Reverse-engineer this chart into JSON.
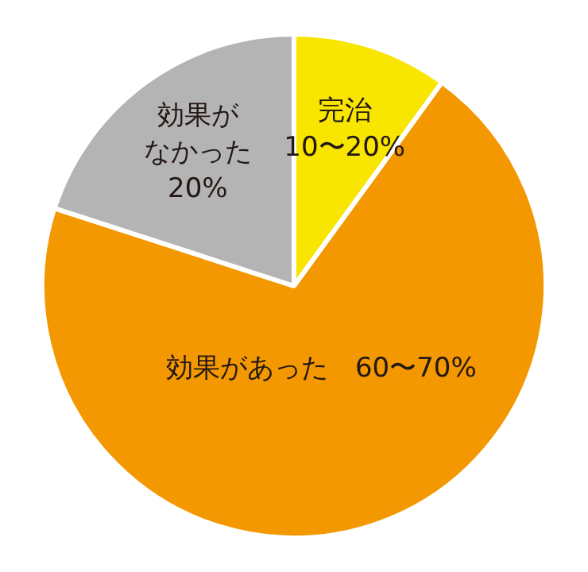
{
  "chart_data": {
    "type": "pie",
    "categories": [
      "完治",
      "効果があった",
      "効果がなかった"
    ],
    "values": [
      10,
      70,
      20
    ],
    "value_labels": [
      "10〜20%",
      "60〜70%",
      "20%"
    ],
    "colors": [
      "#f8e500",
      "#f39800",
      "#b4b4b4"
    ],
    "legend": false
  }
}
